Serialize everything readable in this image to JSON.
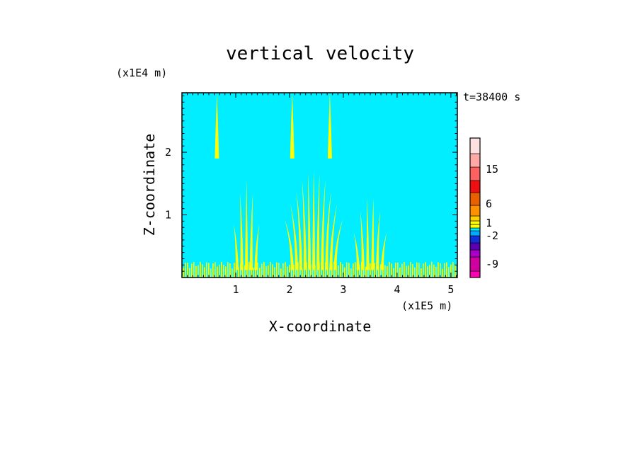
{
  "chart_data": {
    "type": "heatmap",
    "title": "vertical velocity",
    "xlabel": "X-coordinate",
    "ylabel": "Z-coordinate",
    "x_unit": "(x1E5 m)",
    "y_unit": "(x1E4 m)",
    "time_label": "t=38400 s",
    "xlim": [
      0,
      5.12
    ],
    "ylim": [
      0,
      2.95
    ],
    "x_ticks": [
      1,
      2,
      3,
      4,
      5
    ],
    "y_ticks": [
      1,
      2
    ],
    "grid": false,
    "background_color": "#00eeff",
    "colorbar": {
      "levels": [
        {
          "color": "#ff00b0"
        },
        {
          "color": "#d000a0"
        },
        {
          "color": "#a800c8"
        },
        {
          "color": "#5a00b4"
        },
        {
          "color": "#1030d8"
        },
        {
          "color": "#00aaff"
        },
        {
          "color": "#00eeff"
        },
        {
          "color": "#ffff00"
        },
        {
          "color": "#ffff00"
        },
        {
          "color": "#ffd000"
        },
        {
          "color": "#ff9000"
        },
        {
          "color": "#e86000"
        },
        {
          "color": "#ee1010"
        },
        {
          "color": "#ff6060"
        },
        {
          "color": "#ffa8a8"
        },
        {
          "color": "#ffe0e0"
        }
      ],
      "tick_labels": [
        {
          "label": "-9",
          "value": -9
        },
        {
          "label": "-2",
          "value": -2
        },
        {
          "label": "1",
          "value": 1
        },
        {
          "label": "6",
          "value": 6
        },
        {
          "label": "15",
          "value": 15
        }
      ]
    },
    "updraft_regions": [
      {
        "x_center": 1.2,
        "width": 0.35,
        "z_top": 1.55,
        "color": "#ffff00"
      },
      {
        "x_center": 2.45,
        "width": 0.8,
        "z_top": 1.7,
        "color": "#ffff00"
      },
      {
        "x_center": 3.5,
        "width": 0.45,
        "z_top": 1.3,
        "color": "#ffff00"
      },
      {
        "x_center": 2.05,
        "width": 0.1,
        "z_top": 2.95,
        "color": "#ffff00"
      },
      {
        "x_center": 2.75,
        "width": 0.1,
        "z_top": 2.95,
        "color": "#ffff00"
      },
      {
        "x_center": 0.65,
        "width": 0.05,
        "z_top": 2.95,
        "color": "#ffff00"
      }
    ],
    "boundary_layer_top": 0.25
  }
}
